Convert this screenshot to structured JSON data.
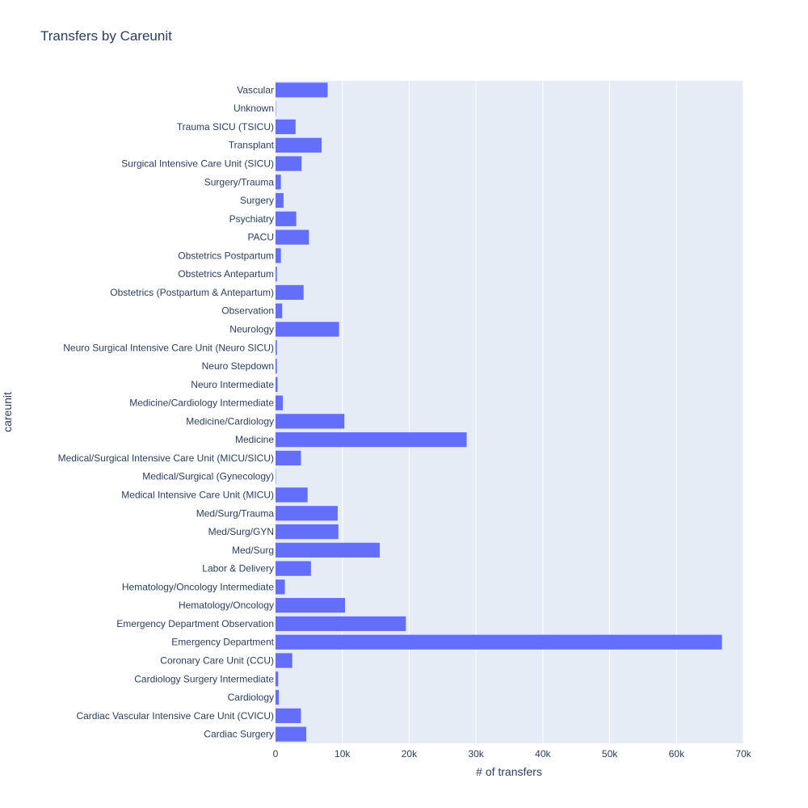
{
  "colors": {
    "bar": "#636efa",
    "plot_background": "#e5ecf6",
    "gridline": "#ffffff",
    "text": "#2a3f5f"
  },
  "chart_data": {
    "type": "bar",
    "orientation": "horizontal",
    "title": "Transfers by Careunit",
    "xlabel": "# of transfers",
    "ylabel": "careunit",
    "xlim": [
      0,
      70000
    ],
    "x_ticks": [
      0,
      10000,
      20000,
      30000,
      40000,
      50000,
      60000,
      70000
    ],
    "x_tick_labels": [
      "0",
      "10k",
      "20k",
      "30k",
      "40k",
      "50k",
      "60k",
      "70k"
    ],
    "grid": true,
    "categories": [
      "Cardiac Surgery",
      "Cardiac Vascular Intensive Care Unit (CVICU)",
      "Cardiology",
      "Cardiology Surgery Intermediate",
      "Coronary Care Unit (CCU)",
      "Emergency Department",
      "Emergency Department Observation",
      "Hematology/Oncology",
      "Hematology/Oncology Intermediate",
      "Labor & Delivery",
      "Med/Surg",
      "Med/Surg/GYN",
      "Med/Surg/Trauma",
      "Medical Intensive Care Unit (MICU)",
      "Medical/Surgical (Gynecology)",
      "Medical/Surgical Intensive Care Unit (MICU/SICU)",
      "Medicine",
      "Medicine/Cardiology",
      "Medicine/Cardiology Intermediate",
      "Neuro Intermediate",
      "Neuro Stepdown",
      "Neuro Surgical Intensive Care Unit (Neuro SICU)",
      "Neurology",
      "Observation",
      "Obstetrics (Postpartum & Antepartum)",
      "Obstetrics Antepartum",
      "Obstetrics Postpartum",
      "PACU",
      "Psychiatry",
      "Surgery",
      "Surgery/Trauma",
      "Surgical Intensive Care Unit (SICU)",
      "Transplant",
      "Trauma SICU (TSICU)",
      "Unknown",
      "Vascular"
    ],
    "values": [
      4600,
      3800,
      500,
      400,
      2500,
      66800,
      19500,
      10400,
      1400,
      5300,
      15600,
      9400,
      9300,
      4800,
      50,
      3800,
      28600,
      10300,
      1100,
      300,
      200,
      200,
      9500,
      1000,
      4200,
      200,
      800,
      5000,
      3100,
      1200,
      800,
      3900,
      6900,
      3000,
      50,
      7800
    ]
  }
}
